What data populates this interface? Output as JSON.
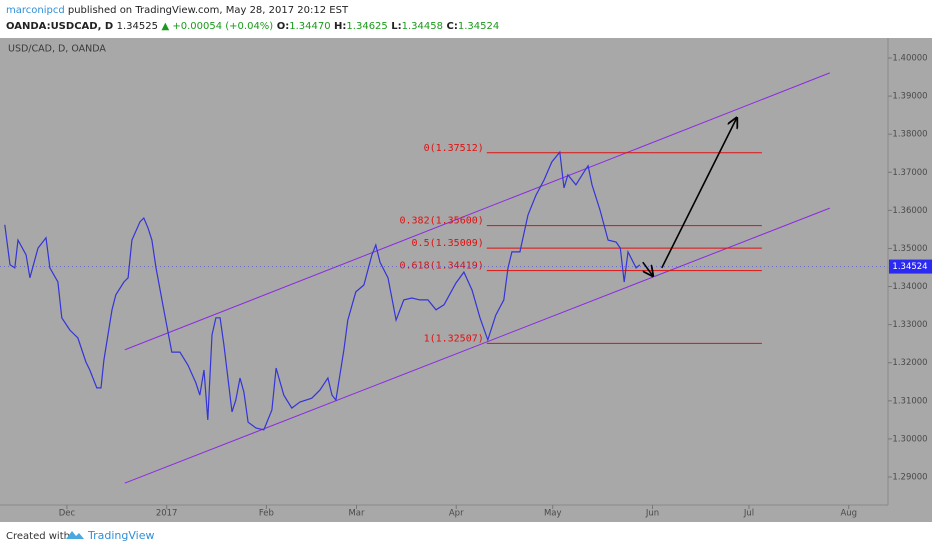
{
  "header": {
    "author": "marconipcd",
    "published": "published on TradingView.com, May 28, 2017 20:12 EST",
    "symbol": "OANDA:USDCAD, D",
    "price": "1.34525",
    "change": "▲ +0.00054 (+0.04%)",
    "ohlc": [
      {
        "label": "O:",
        "value": "1.34470"
      },
      {
        "label": "H:",
        "value": "1.34625"
      },
      {
        "label": "L:",
        "value": "1.34458"
      },
      {
        "label": "C:",
        "value": "1.34524"
      }
    ]
  },
  "footer": {
    "text": "Created with",
    "brand": "TradingView"
  },
  "chart_data": {
    "type": "line",
    "background": "#a8a8a8",
    "xlim": [
      -20.8,
      255.2
    ],
    "ylim": [
      1.28265,
      1.40525
    ],
    "xticks": [
      {
        "value": 0,
        "label": "Dec"
      },
      {
        "value": 31,
        "label": "2017"
      },
      {
        "value": 62,
        "label": "Feb"
      },
      {
        "value": 90,
        "label": "Mar"
      },
      {
        "value": 121,
        "label": "Apr"
      },
      {
        "value": 151,
        "label": "May"
      },
      {
        "value": 182,
        "label": "Jun"
      },
      {
        "value": 212,
        "label": "Jul"
      },
      {
        "value": 243,
        "label": "Aug"
      }
    ],
    "yticks": [
      {
        "value": 1.29,
        "label": "1.29000"
      },
      {
        "value": 1.3,
        "label": "1.30000"
      },
      {
        "value": 1.31,
        "label": "1.31000"
      },
      {
        "value": 1.32,
        "label": "1.32000"
      },
      {
        "value": 1.33,
        "label": "1.33000"
      },
      {
        "value": 1.34,
        "label": "1.34000"
      },
      {
        "value": 1.35,
        "label": "1.35000"
      },
      {
        "value": 1.36,
        "label": "1.36000"
      },
      {
        "value": 1.37,
        "label": "1.37000"
      },
      {
        "value": 1.38,
        "label": "1.38000"
      },
      {
        "value": 1.39,
        "label": "1.39000"
      },
      {
        "value": 1.4,
        "label": "1.40000"
      }
    ],
    "grid": false,
    "series": [
      {
        "name": "USD/CAD, D, OANDA",
        "color": "#3434d8",
        "x": [
          -19.3,
          -17.7,
          -16.2,
          -15.2,
          -12.7,
          -11.5,
          -9.0,
          -6.5,
          -5.3,
          -2.8,
          -1.6,
          0.9,
          3.4,
          5.9,
          7.1,
          9.3,
          10.6,
          11.5,
          14.0,
          15.2,
          17.7,
          19.0,
          20.2,
          22.7,
          23.9,
          25.2,
          26.4,
          27.7,
          30.1,
          32.6,
          35.1,
          37.6,
          40.1,
          41.3,
          42.6,
          43.8,
          45.1,
          46.3,
          47.6,
          48.8,
          51.3,
          52.5,
          53.8,
          55.0,
          56.3,
          58.7,
          61.2,
          63.7,
          65.0,
          67.4,
          69.9,
          72.4,
          76.1,
          78.6,
          81.1,
          82.4,
          83.6,
          86.1,
          87.3,
          89.8,
          92.3,
          94.8,
          96.0,
          97.3,
          99.8,
          102.3,
          104.7,
          107.2,
          109.7,
          112.2,
          114.7,
          117.2,
          120.9,
          123.4,
          125.9,
          128.4,
          130.8,
          133.3,
          135.8,
          137.1,
          138.3,
          140.8,
          143.3,
          145.8,
          148.3,
          150.7,
          153.2,
          154.5,
          155.7,
          158.2,
          160.7,
          162.0,
          163.2,
          165.7,
          168.2,
          170.7,
          172.0,
          173.2,
          174.4,
          176.9,
          178.1
        ],
        "values": [
          1.3562,
          1.3457,
          1.3449,
          1.3522,
          1.3483,
          1.3423,
          1.3501,
          1.3528,
          1.3449,
          1.3412,
          1.3318,
          1.3286,
          1.3265,
          1.3202,
          1.3181,
          1.3134,
          1.3134,
          1.3207,
          1.3339,
          1.3378,
          1.3412,
          1.3423,
          1.3522,
          1.357,
          1.358,
          1.3554,
          1.3522,
          1.3449,
          1.3339,
          1.3228,
          1.3228,
          1.3194,
          1.3147,
          1.3115,
          1.3181,
          1.305,
          1.3273,
          1.3318,
          1.3318,
          1.3247,
          1.3071,
          1.3102,
          1.316,
          1.3123,
          1.3044,
          1.3029,
          1.3024,
          1.3076,
          1.3186,
          1.3115,
          1.3081,
          1.3097,
          1.3107,
          1.3128,
          1.316,
          1.3115,
          1.3102,
          1.3234,
          1.3312,
          1.3386,
          1.3404,
          1.3483,
          1.3509,
          1.3464,
          1.3423,
          1.3312,
          1.3365,
          1.337,
          1.3365,
          1.3365,
          1.3339,
          1.3352,
          1.3409,
          1.3438,
          1.3391,
          1.3318,
          1.326,
          1.3325,
          1.3365,
          1.3449,
          1.3491,
          1.3491,
          1.3588,
          1.364,
          1.368,
          1.3727,
          1.3753,
          1.3659,
          1.3693,
          1.3667,
          1.3701,
          1.3717,
          1.3667,
          1.3601,
          1.3522,
          1.3517,
          1.3501,
          1.3412,
          1.3491,
          1.3449,
          1.3457
        ]
      }
    ],
    "last_price": 1.34524,
    "last_price_color": "#2a2af0",
    "trendlines": [
      {
        "color": "#8b2be0",
        "x": [
          18.0,
          237.1
        ],
        "values": [
          1.3234,
          1.3961
        ]
      },
      {
        "color": "#8b2be0",
        "x": [
          18.0,
          237.1
        ],
        "values": [
          1.2884,
          1.3606
        ]
      }
    ],
    "arrows": [
      {
        "color": "#000000",
        "x": [
          179.0,
          182.1
        ],
        "values": [
          1.3464,
          1.3428
        ]
      },
      {
        "color": "#000000",
        "x": [
          184.9,
          208.2
        ],
        "values": [
          1.3449,
          1.3843
        ]
      }
    ],
    "fib": {
      "color": "#e01010",
      "x": [
        130.5,
        216.0
      ],
      "levels": [
        {
          "value": 1.37512,
          "label": "0(1.37512)"
        },
        {
          "value": 1.356,
          "label": "0.382(1.35600)"
        },
        {
          "value": 1.35009,
          "label": "0.5(1.35009)"
        },
        {
          "value": 1.34419,
          "label": "0.618(1.34419)"
        },
        {
          "value": 1.32507,
          "label": "1(1.32507)"
        }
      ]
    }
  }
}
